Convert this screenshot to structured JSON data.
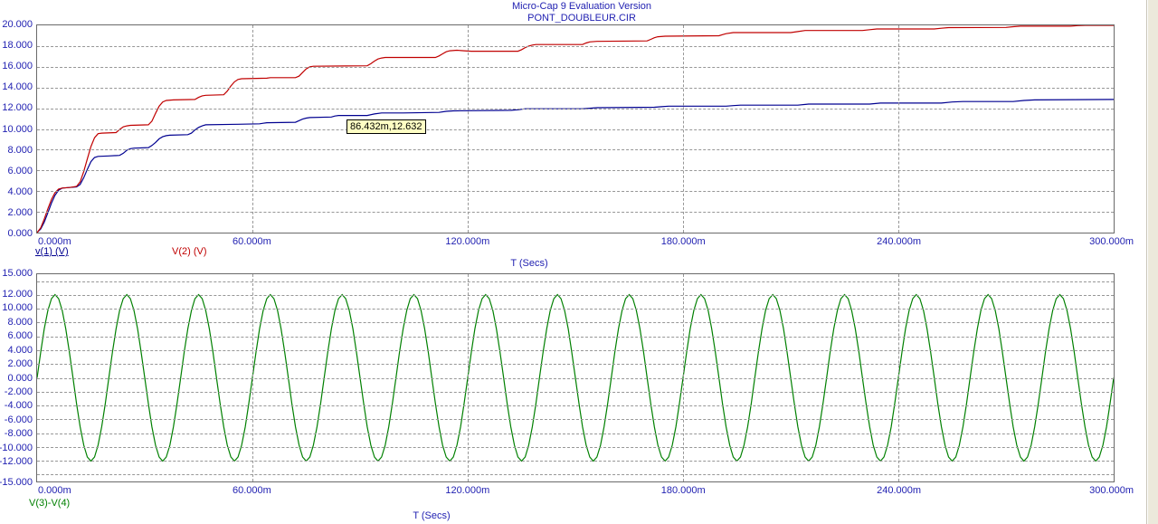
{
  "header": {
    "line1": "Micro-Cap 9 Evaluation Version",
    "line2": "PONT_DOUBLEUR.CIR"
  },
  "colors": {
    "axis_text": "#2222b2",
    "grid": "#979797",
    "plot_border": "#6a6a6a",
    "curve_v1": "#000090",
    "curve_v2": "#c00000",
    "curve_v3_v4": "#008000",
    "tooltip_bg": "#ffffc4"
  },
  "tooltip": {
    "text": "86.432m,12.632"
  },
  "chart_data": [
    {
      "type": "line",
      "title": "Transient voltages V(1) and V(2)",
      "x_axis": {
        "label": "T (Secs)",
        "min": 0,
        "max": 300,
        "unit": "ms",
        "ticks": [
          {
            "v": 0,
            "label": "0.000m"
          },
          {
            "v": 60,
            "label": "60.000m"
          },
          {
            "v": 120,
            "label": "120.000m"
          },
          {
            "v": 180,
            "label": "180.000m"
          },
          {
            "v": 240,
            "label": "240.000m"
          },
          {
            "v": 300,
            "label": "300.000m"
          }
        ],
        "grid_values": [
          60,
          120,
          180,
          240
        ]
      },
      "y_axis": {
        "label": "",
        "min": 0,
        "max": 20,
        "ticks": [
          {
            "v": 20,
            "label": "20.000"
          },
          {
            "v": 18,
            "label": "18.000"
          },
          {
            "v": 16,
            "label": "16.000"
          },
          {
            "v": 14,
            "label": "14.000"
          },
          {
            "v": 12,
            "label": "12.000"
          },
          {
            "v": 10,
            "label": "10.000"
          },
          {
            "v": 8,
            "label": "8.000"
          },
          {
            "v": 6,
            "label": "6.000"
          },
          {
            "v": 4,
            "label": "4.000"
          },
          {
            "v": 2,
            "label": "2.000"
          },
          {
            "v": 0,
            "label": "0.000"
          }
        ],
        "grid_values": [
          18,
          16,
          14,
          12,
          10,
          8,
          6,
          4,
          2
        ]
      },
      "legend": [
        {
          "label": "v(1) (V)",
          "color": "#000090",
          "underline": true
        },
        {
          "label": "V(2) (V)",
          "color": "#c00000",
          "underline": false
        }
      ],
      "annotation": {
        "text": "86.432m,12.632",
        "x_ms": 86.432,
        "value": 12.632
      },
      "series": [
        {
          "id": "curve-v1",
          "name": "v(1) (V)",
          "color": "#000090",
          "points": [
            [
              0,
              0
            ],
            [
              1,
              0.35
            ],
            [
              2,
              1.0
            ],
            [
              3,
              1.9
            ],
            [
              4,
              2.85
            ],
            [
              5,
              3.6
            ],
            [
              6,
              4.1
            ],
            [
              7,
              4.3
            ],
            [
              9,
              4.35
            ],
            [
              11,
              4.4
            ],
            [
              12,
              4.65
            ],
            [
              13,
              5.3
            ],
            [
              14,
              6.1
            ],
            [
              15,
              6.85
            ],
            [
              16,
              7.25
            ],
            [
              17,
              7.35
            ],
            [
              20,
              7.4
            ],
            [
              23,
              7.45
            ],
            [
              24,
              7.65
            ],
            [
              25,
              7.95
            ],
            [
              26,
              8.1
            ],
            [
              27,
              8.15
            ],
            [
              31,
              8.2
            ],
            [
              32,
              8.4
            ],
            [
              33,
              8.7
            ],
            [
              34,
              9.05
            ],
            [
              35,
              9.25
            ],
            [
              36,
              9.35
            ],
            [
              37,
              9.4
            ],
            [
              42,
              9.45
            ],
            [
              43,
              9.6
            ],
            [
              44,
              9.9
            ],
            [
              45,
              10.15
            ],
            [
              46,
              10.3
            ],
            [
              47,
              10.4
            ],
            [
              56,
              10.45
            ],
            [
              62,
              10.5
            ],
            [
              63,
              10.55
            ],
            [
              64,
              10.6
            ],
            [
              72,
              10.65
            ],
            [
              73,
              10.8
            ],
            [
              74,
              10.95
            ],
            [
              75,
              11.05
            ],
            [
              76,
              11.1
            ],
            [
              82,
              11.15
            ],
            [
              83,
              11.25
            ],
            [
              84,
              11.3
            ],
            [
              92,
              11.3
            ],
            [
              94,
              11.45
            ],
            [
              96,
              11.55
            ],
            [
              102,
              11.55
            ],
            [
              112,
              11.6
            ],
            [
              114,
              11.7
            ],
            [
              116,
              11.75
            ],
            [
              132,
              11.8
            ],
            [
              134,
              11.85
            ],
            [
              136,
              11.95
            ],
            [
              152,
              11.95
            ],
            [
              154,
              12.0
            ],
            [
              156,
              12.05
            ],
            [
              172,
              12.1
            ],
            [
              174,
              12.15
            ],
            [
              176,
              12.2
            ],
            [
              192,
              12.2
            ],
            [
              194,
              12.25
            ],
            [
              196,
              12.3
            ],
            [
              212,
              12.3
            ],
            [
              215,
              12.4
            ],
            [
              232,
              12.4
            ],
            [
              235,
              12.5
            ],
            [
              252,
              12.5
            ],
            [
              255,
              12.6
            ],
            [
              258,
              12.65
            ],
            [
              272,
              12.65
            ],
            [
              275,
              12.75
            ],
            [
              278,
              12.8
            ],
            [
              300,
              12.85
            ]
          ]
        },
        {
          "id": "curve-v2",
          "name": "V(2) (V)",
          "color": "#c00000",
          "points": [
            [
              0,
              0
            ],
            [
              1,
              0.45
            ],
            [
              2,
              1.3
            ],
            [
              3,
              2.3
            ],
            [
              4,
              3.2
            ],
            [
              5,
              3.85
            ],
            [
              6,
              4.2
            ],
            [
              7,
              4.3
            ],
            [
              9,
              4.35
            ],
            [
              11,
              4.45
            ],
            [
              12,
              4.9
            ],
            [
              13,
              5.9
            ],
            [
              14,
              7.1
            ],
            [
              15,
              8.3
            ],
            [
              16,
              9.15
            ],
            [
              17,
              9.55
            ],
            [
              18,
              9.6
            ],
            [
              22,
              9.65
            ],
            [
              23,
              9.95
            ],
            [
              24,
              10.2
            ],
            [
              25,
              10.3
            ],
            [
              26,
              10.35
            ],
            [
              31,
              10.4
            ],
            [
              32,
              10.75
            ],
            [
              33,
              11.5
            ],
            [
              34,
              12.2
            ],
            [
              35,
              12.6
            ],
            [
              36,
              12.75
            ],
            [
              38,
              12.8
            ],
            [
              44,
              12.85
            ],
            [
              45,
              13.05
            ],
            [
              46,
              13.2
            ],
            [
              47,
              13.25
            ],
            [
              52,
              13.3
            ],
            [
              53,
              13.65
            ],
            [
              54,
              14.15
            ],
            [
              55,
              14.55
            ],
            [
              56,
              14.78
            ],
            [
              57,
              14.85
            ],
            [
              64,
              14.9
            ],
            [
              65,
              14.95
            ],
            [
              72,
              14.95
            ],
            [
              73,
              15.1
            ],
            [
              74,
              15.45
            ],
            [
              75,
              15.8
            ],
            [
              76,
              16.0
            ],
            [
              77,
              16.05
            ],
            [
              92,
              16.1
            ],
            [
              93,
              16.3
            ],
            [
              94,
              16.55
            ],
            [
              95,
              16.75
            ],
            [
              96,
              16.85
            ],
            [
              97,
              16.9
            ],
            [
              111,
              16.9
            ],
            [
              112,
              17.05
            ],
            [
              113,
              17.25
            ],
            [
              114,
              17.45
            ],
            [
              115,
              17.55
            ],
            [
              117,
              17.6
            ],
            [
              119,
              17.55
            ],
            [
              121,
              17.5
            ],
            [
              134,
              17.5
            ],
            [
              135,
              17.65
            ],
            [
              136,
              17.85
            ],
            [
              137,
              18.0
            ],
            [
              138,
              18.1
            ],
            [
              139,
              18.15
            ],
            [
              152,
              18.15
            ],
            [
              153,
              18.3
            ],
            [
              154,
              18.4
            ],
            [
              156,
              18.45
            ],
            [
              170,
              18.5
            ],
            [
              171,
              18.65
            ],
            [
              172,
              18.8
            ],
            [
              173,
              18.9
            ],
            [
              175,
              18.95
            ],
            [
              190,
              19.0
            ],
            [
              191,
              19.1
            ],
            [
              192,
              19.2
            ],
            [
              194,
              19.3
            ],
            [
              210,
              19.3
            ],
            [
              212,
              19.4
            ],
            [
              214,
              19.5
            ],
            [
              230,
              19.5
            ],
            [
              232,
              19.58
            ],
            [
              234,
              19.65
            ],
            [
              250,
              19.65
            ],
            [
              252,
              19.72
            ],
            [
              254,
              19.78
            ],
            [
              270,
              19.8
            ],
            [
              272,
              19.87
            ],
            [
              274,
              19.92
            ],
            [
              288,
              19.92
            ],
            [
              290,
              19.97
            ],
            [
              292,
              20.0
            ],
            [
              300,
              20.0
            ]
          ]
        }
      ]
    },
    {
      "type": "line",
      "title": "Source differential voltage V(3)-V(4)",
      "x_axis": {
        "label": "T (Secs)",
        "min": 0,
        "max": 300,
        "unit": "ms",
        "ticks": [
          {
            "v": 0,
            "label": "0.000m"
          },
          {
            "v": 60,
            "label": "60.000m"
          },
          {
            "v": 120,
            "label": "120.000m"
          },
          {
            "v": 180,
            "label": "180.000m"
          },
          {
            "v": 240,
            "label": "240.000m"
          },
          {
            "v": 300,
            "label": "300.000m"
          }
        ],
        "grid_values": [
          60,
          120,
          180,
          240
        ]
      },
      "y_axis": {
        "label": "",
        "min": -15,
        "max": 15,
        "ticks": [
          {
            "v": 15,
            "label": "15.000"
          },
          {
            "v": 12,
            "label": "12.000"
          },
          {
            "v": 10,
            "label": "10.000"
          },
          {
            "v": 8,
            "label": "8.000"
          },
          {
            "v": 6,
            "label": "6.000"
          },
          {
            "v": 4,
            "label": "4.000"
          },
          {
            "v": 2,
            "label": "2.000"
          },
          {
            "v": 0,
            "label": "0.000"
          },
          {
            "v": -2,
            "label": "-2.000"
          },
          {
            "v": -4,
            "label": "-4.000"
          },
          {
            "v": -6,
            "label": "-6.000"
          },
          {
            "v": -8,
            "label": "-8.000"
          },
          {
            "v": -10,
            "label": "-10.000"
          },
          {
            "v": -12,
            "label": "-12.000"
          },
          {
            "v": -15,
            "label": "-15.000"
          }
        ],
        "grid_values": [
          14,
          12,
          10,
          8,
          6,
          4,
          2,
          0,
          -2,
          -4,
          -6,
          -8,
          -10,
          -12,
          -14
        ]
      },
      "legend": [
        {
          "label": "V(3)-V(4)",
          "color": "#008000",
          "underline": false
        }
      ],
      "series": [
        {
          "id": "curve-v3-v4",
          "name": "V(3)-V(4)",
          "color": "#008000",
          "sine": {
            "amplitude": 12.05,
            "period_ms": 20,
            "phase_deg": 0,
            "step_ms": 1
          }
        }
      ]
    }
  ]
}
